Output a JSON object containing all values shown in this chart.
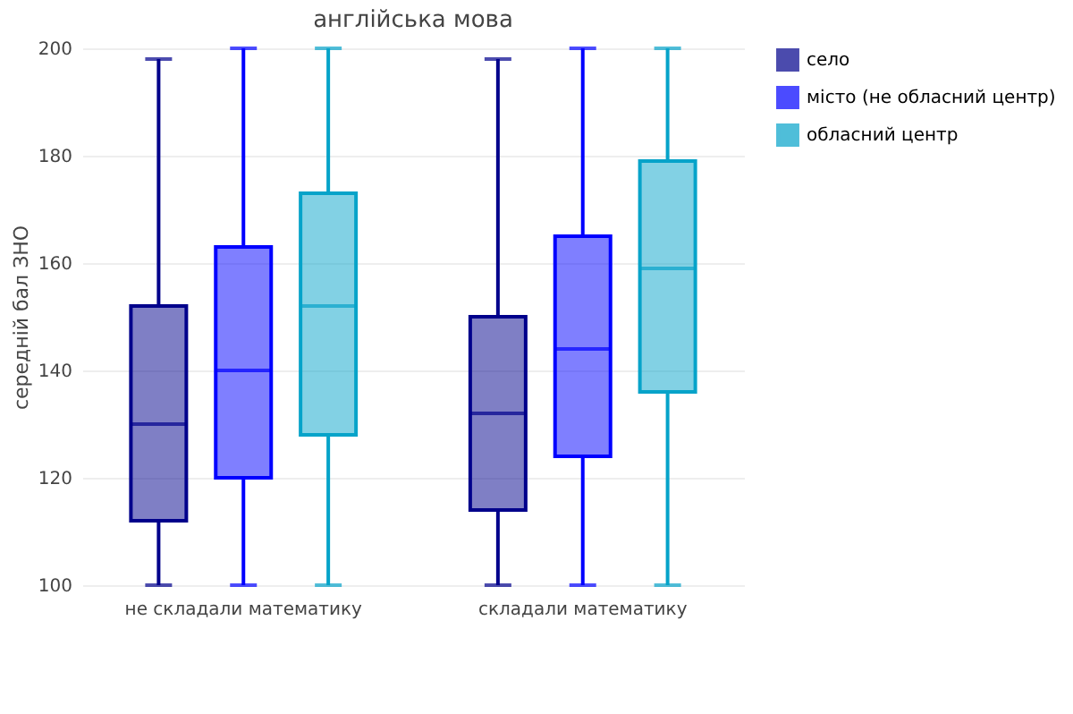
{
  "chart_data": {
    "type": "box",
    "title": "англійська мова",
    "ylabel": "середній бал ЗНО",
    "categories": [
      "не складали математику",
      "складали математику"
    ],
    "ylim": [
      100,
      200
    ],
    "yticks": [
      100,
      120,
      140,
      160,
      180,
      200
    ],
    "grid": "y",
    "legend": "top right",
    "series": [
      {
        "name": "село",
        "color": "#00008b",
        "boxes": [
          {
            "low": 100,
            "q1": 112,
            "median": 130,
            "q3": 152,
            "high": 198
          },
          {
            "low": 100,
            "q1": 114,
            "median": 132,
            "q3": 150,
            "high": 198
          }
        ]
      },
      {
        "name": "місто (не обласний центр)",
        "color": "#0000ff",
        "boxes": [
          {
            "low": 100,
            "q1": 120,
            "median": 140,
            "q3": 163,
            "high": 200
          },
          {
            "low": 100,
            "q1": 124,
            "median": 144,
            "q3": 165,
            "high": 200
          }
        ]
      },
      {
        "name": "обласний центр",
        "color": "#06a3c9",
        "boxes": [
          {
            "low": 100,
            "q1": 128,
            "median": 152,
            "q3": 173,
            "high": 200
          },
          {
            "low": 100,
            "q1": 136,
            "median": 159,
            "q3": 179,
            "high": 200
          }
        ]
      }
    ]
  }
}
